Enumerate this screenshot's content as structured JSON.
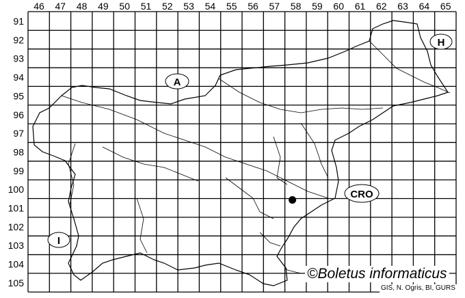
{
  "grid": {
    "columns": [
      "46",
      "47",
      "48",
      "49",
      "50",
      "51",
      "52",
      "53",
      "54",
      "55",
      "56",
      "57",
      "58",
      "59",
      "60",
      "61",
      "62",
      "63",
      "64",
      "65"
    ],
    "rows": [
      "91",
      "92",
      "93",
      "94",
      "95",
      "96",
      "97",
      "98",
      "99",
      "100",
      "101",
      "102",
      "103",
      "104",
      "105"
    ]
  },
  "regions": [
    {
      "label": "A",
      "name": "austria"
    },
    {
      "label": "H",
      "name": "hungary"
    },
    {
      "label": "CRO",
      "name": "croatia"
    },
    {
      "label": "I",
      "name": "italy"
    }
  ],
  "record": {
    "column": "58",
    "row": "101",
    "color": "#000000"
  },
  "copyright": "©Boletus informaticus",
  "credit": "GIS, N. Ogris, BI, GURS",
  "colors": {
    "lines": "#000000",
    "background": "#ffffff"
  }
}
